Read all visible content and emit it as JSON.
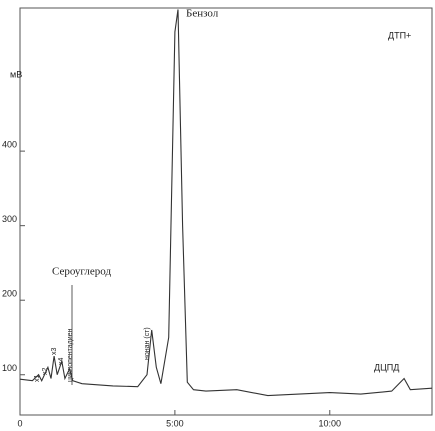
{
  "chart_data": {
    "type": "line",
    "y_label": "мВ",
    "annotations": [
      "Бензол",
      "ДТП+",
      "Сероуглерод",
      "ДЦПД",
      "нонан (ст)",
      "циклопентадиен",
      "x1",
      "x2",
      "x3",
      "x4"
    ],
    "x": [
      0,
      0.4,
      0.6,
      0.7,
      0.9,
      1.0,
      1.1,
      1.2,
      1.35,
      1.45,
      1.6,
      1.7,
      2.0,
      3.0,
      3.8,
      4.1,
      4.25,
      4.4,
      4.55,
      4.8,
      5.0,
      5.1,
      5.25,
      5.4,
      5.6,
      6.0,
      7.0,
      8.0,
      9.0,
      10.0,
      11.0,
      12.0,
      12.4,
      12.6,
      13.3
    ],
    "series": [
      {
        "color": "#333333",
        "values": [
          94,
          92,
          100,
          92,
          110,
          95,
          125,
          100,
          118,
          95,
          108,
          92,
          88,
          85,
          84,
          100,
          160,
          110,
          88,
          150,
          560,
          590,
          300,
          90,
          80,
          78,
          80,
          72,
          74,
          76,
          74,
          78,
          95,
          80,
          82
        ]
      }
    ],
    "xlim": [
      0,
      13.3
    ],
    "xticks": [
      0,
      {
        "value": 5,
        "label": "5:00"
      },
      {
        "value": 10,
        "label": "10:00"
      }
    ],
    "ylim": [
      46,
      592
    ],
    "yticks": [
      100,
      200,
      300,
      400
    ]
  }
}
